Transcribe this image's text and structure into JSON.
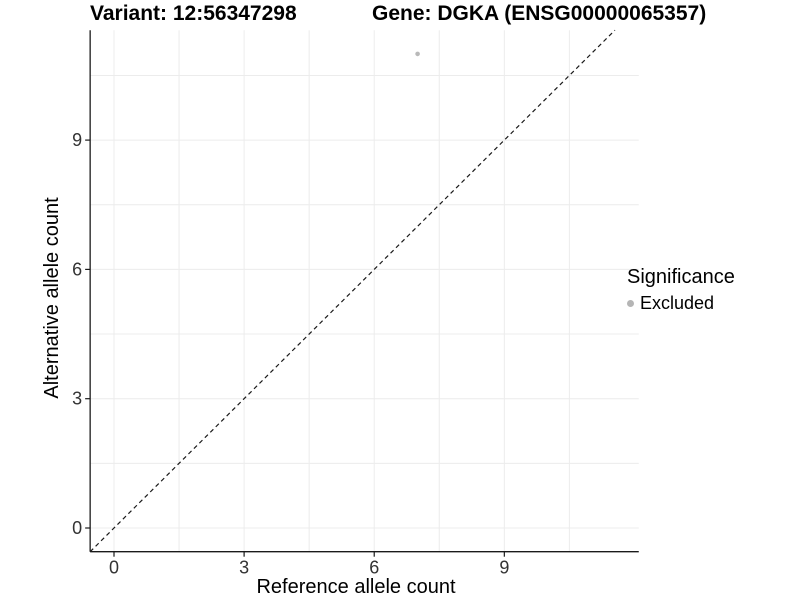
{
  "chart_data": {
    "type": "scatter",
    "titles": {
      "left": "Variant: 12:56347298",
      "right": "Gene: DGKA (ENSG00000065357)"
    },
    "xlabel": "Reference allele count",
    "ylabel": "Alternative allele count",
    "x_ticks": [
      0,
      3,
      6,
      9
    ],
    "y_ticks": [
      0,
      3,
      6,
      9
    ],
    "x_minor_gridlines": [
      1.5,
      4.5,
      7.5,
      10.5
    ],
    "y_minor_gridlines": [
      1.5,
      4.5,
      7.5,
      10.5
    ],
    "xlim": [
      -0.55,
      12.1
    ],
    "ylim": [
      -0.55,
      11.55
    ],
    "grid": "major and minor gridlines, very light gray, no panel border",
    "points": [
      {
        "x": 7,
        "y": 11,
        "significance": "Excluded"
      }
    ],
    "identity_line": {
      "style": "dashed",
      "equation": "y = x",
      "from": -0.55,
      "to": 11.55
    },
    "legend": {
      "title": "Significance",
      "position": "right",
      "items": [
        {
          "label": "Excluded",
          "color": "#b5b5b5"
        }
      ]
    },
    "colors": {
      "point": "#b9b9b9",
      "gridline": "#ececec",
      "axis": "#1a1a1a",
      "identity_line": "#1a1a1a",
      "tick_text": "#333333",
      "background": "#ffffff"
    }
  }
}
